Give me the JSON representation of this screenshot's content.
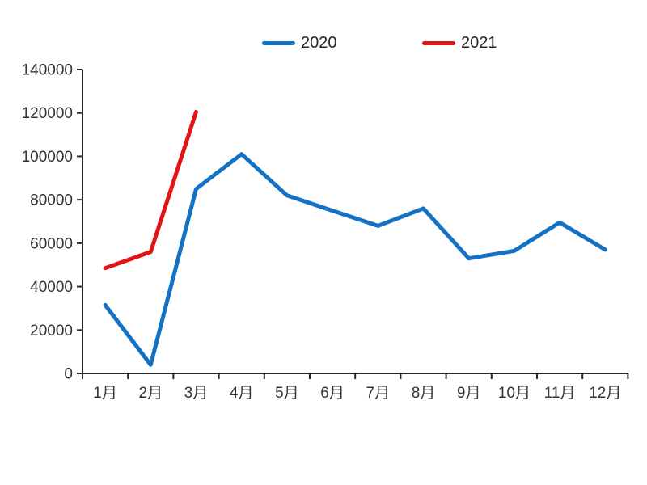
{
  "chart_data": {
    "type": "line",
    "title": "",
    "categories": [
      "1月",
      "2月",
      "3月",
      "4月",
      "5月",
      "6月",
      "7月",
      "8月",
      "9月",
      "10月",
      "11月",
      "12月"
    ],
    "series": [
      {
        "name": "2020",
        "color": "#1571c3",
        "values": [
          31500,
          4000,
          85000,
          101000,
          82000,
          75000,
          68000,
          76000,
          53000,
          56500,
          69500,
          57000
        ]
      },
      {
        "name": "2021",
        "color": "#e21414",
        "values": [
          48500,
          56000,
          120500
        ]
      }
    ],
    "xlabel": "",
    "ylabel": "",
    "ylim": [
      0,
      140000
    ],
    "yticks": [
      0,
      20000,
      40000,
      60000,
      80000,
      100000,
      120000,
      140000
    ],
    "grid": false,
    "legend_position": "top-center",
    "axis_color": "#262626",
    "tick_label_color": "#333333"
  }
}
